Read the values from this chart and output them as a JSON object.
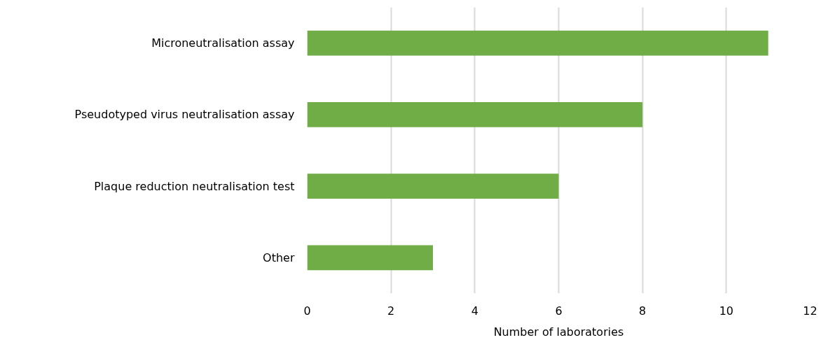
{
  "chart_data": {
    "type": "bar",
    "orientation": "horizontal",
    "categories": [
      "Microneutralisation assay",
      "Pseudotyped virus neutralisation assay",
      "Plaque reduction neutralisation test",
      "Other"
    ],
    "values": [
      11,
      8,
      6,
      3
    ],
    "color": "#70ad47",
    "xlabel": "Number of laboratories",
    "xlim": [
      0,
      12
    ],
    "xticks": [
      0,
      2,
      4,
      6,
      8,
      10,
      12
    ],
    "grid": "x"
  }
}
